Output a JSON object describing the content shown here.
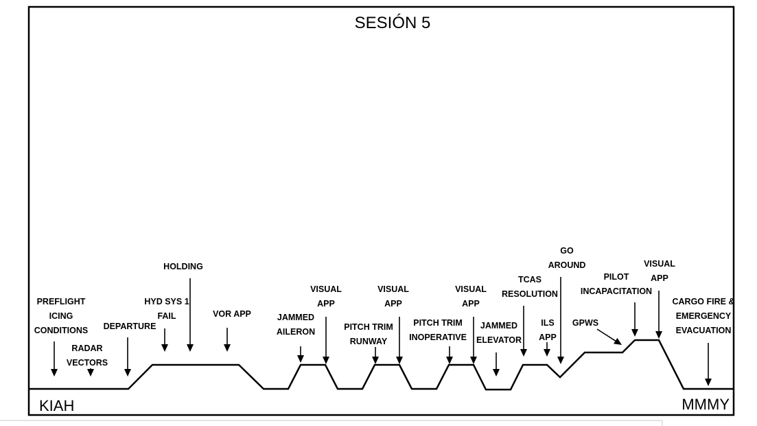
{
  "title": "SESIÓN 5",
  "origin": "KIAH",
  "destination": "MMMY",
  "events": [
    {
      "id": "preflight",
      "lines": [
        "PREFLIGHT",
        "ICING",
        "CONDITIONS"
      ]
    },
    {
      "id": "radar",
      "lines": [
        "RADAR",
        "VECTORS"
      ]
    },
    {
      "id": "departure",
      "lines": [
        "DEPARTURE"
      ]
    },
    {
      "id": "hyd",
      "lines": [
        "HYD SYS 1",
        "FAIL"
      ]
    },
    {
      "id": "holding",
      "lines": [
        "HOLDING"
      ]
    },
    {
      "id": "vor",
      "lines": [
        "VOR APP"
      ]
    },
    {
      "id": "jammed-aileron",
      "lines": [
        "JAMMED",
        "AILERON"
      ]
    },
    {
      "id": "visual1",
      "lines": [
        "VISUAL",
        "APP"
      ]
    },
    {
      "id": "pitch-runway",
      "lines": [
        "PITCH TRIM",
        "RUNWAY"
      ]
    },
    {
      "id": "visual2",
      "lines": [
        "VISUAL",
        "APP"
      ]
    },
    {
      "id": "pitch-inop",
      "lines": [
        "PITCH TRIM",
        "INOPERATIVE"
      ]
    },
    {
      "id": "visual3",
      "lines": [
        "VISUAL",
        "APP"
      ]
    },
    {
      "id": "jammed-elevator",
      "lines": [
        "JAMMED",
        "ELEVATOR"
      ]
    },
    {
      "id": "tcas",
      "lines": [
        "TCAS",
        "RESOLUTION"
      ]
    },
    {
      "id": "ils",
      "lines": [
        "ILS",
        "APP"
      ]
    },
    {
      "id": "go-around",
      "lines": [
        "GO",
        "AROUND"
      ]
    },
    {
      "id": "gpws",
      "lines": [
        "GPWS"
      ]
    },
    {
      "id": "pilot",
      "lines": [
        "PILOT",
        "INCAPACITATION"
      ]
    },
    {
      "id": "visual4",
      "lines": [
        "VISUAL",
        "APP"
      ]
    },
    {
      "id": "cargo",
      "lines": [
        "CARGO FIRE &",
        "EMERGENCY",
        "EVACUATION"
      ]
    }
  ]
}
